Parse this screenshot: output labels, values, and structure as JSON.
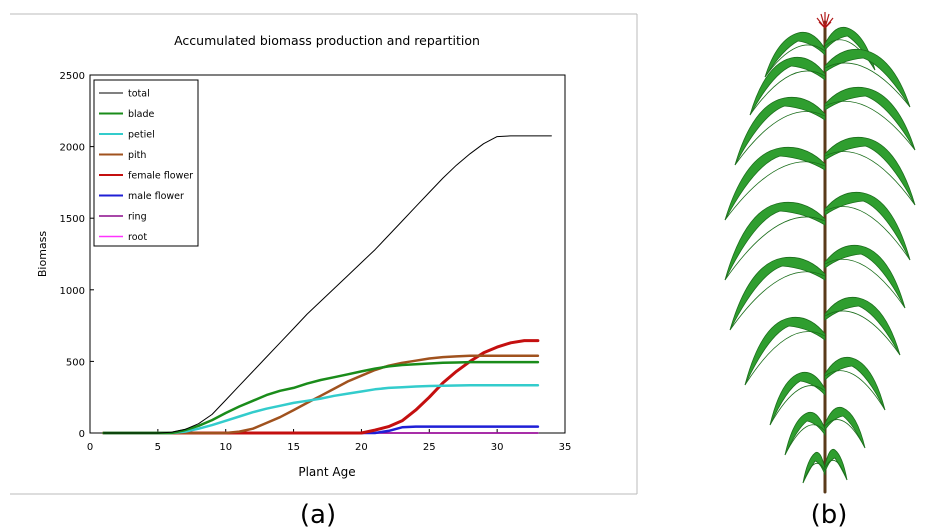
{
  "figure": {
    "panel_a_label": "(a)",
    "panel_b_label": "(b)"
  },
  "colors": {
    "total": "#000000",
    "blade": "#1a8c1a",
    "petiel": "#33cccc",
    "pith": "#a0521e",
    "female_flower": "#c40f0f",
    "male_flower": "#1f1fd6",
    "ring": "#8b0a8b",
    "root": "#ff33ff",
    "leaf_green": "#2f9e2f",
    "leaf_dark": "#1c6e1c",
    "stem": "#5a3a1a",
    "tassel": "#b01818"
  },
  "chart_data": {
    "type": "line",
    "title": "Accumulated biomass production and repartition",
    "xlabel": "Plant Age",
    "ylabel": "Biomass",
    "xlim": [
      0,
      35
    ],
    "ylim": [
      0,
      2500
    ],
    "xticks": [
      0,
      5,
      10,
      15,
      20,
      25,
      30,
      35
    ],
    "yticks": [
      0,
      500,
      1000,
      1500,
      2000,
      2500
    ],
    "legend_position": "top-left",
    "grid": false,
    "series": [
      {
        "name": "total",
        "color_key": "total",
        "width": 1,
        "x": [
          1,
          5,
          6,
          7,
          8,
          9,
          10,
          11,
          12,
          13,
          14,
          15,
          16,
          17,
          18,
          19,
          20,
          21,
          22,
          23,
          24,
          25,
          26,
          27,
          28,
          29,
          30,
          31,
          32,
          33,
          34
        ],
        "y": [
          0,
          0,
          5,
          25,
          65,
          130,
          230,
          330,
          430,
          530,
          630,
          730,
          830,
          920,
          1010,
          1100,
          1190,
          1280,
          1380,
          1480,
          1580,
          1680,
          1780,
          1870,
          1950,
          2020,
          2070,
          2075,
          2075,
          2075,
          2075
        ]
      },
      {
        "name": "blade",
        "color_key": "blade",
        "width": 2.5,
        "x": [
          1,
          6,
          7,
          8,
          9,
          10,
          11,
          12,
          13,
          14,
          15,
          16,
          17,
          18,
          19,
          20,
          21,
          22,
          23,
          24,
          25,
          26,
          27,
          28,
          29,
          30,
          31,
          32,
          33
        ],
        "y": [
          0,
          0,
          20,
          50,
          90,
          140,
          185,
          225,
          265,
          295,
          315,
          345,
          370,
          390,
          410,
          430,
          450,
          465,
          475,
          480,
          485,
          490,
          492,
          495,
          495,
          495,
          495,
          495,
          495
        ]
      },
      {
        "name": "petiel",
        "color_key": "petiel",
        "width": 2.5,
        "x": [
          1,
          6,
          7,
          8,
          9,
          10,
          11,
          12,
          13,
          14,
          15,
          16,
          17,
          18,
          19,
          20,
          21,
          22,
          23,
          24,
          25,
          26,
          27,
          28,
          29,
          30,
          31,
          32,
          33
        ],
        "y": [
          0,
          0,
          10,
          30,
          55,
          85,
          115,
          145,
          170,
          190,
          210,
          225,
          240,
          260,
          275,
          290,
          305,
          315,
          320,
          325,
          328,
          330,
          332,
          333,
          333,
          333,
          333,
          333,
          333
        ]
      },
      {
        "name": "pith",
        "color_key": "pith",
        "width": 2.5,
        "x": [
          1,
          10,
          11,
          12,
          13,
          14,
          15,
          16,
          17,
          18,
          19,
          20,
          21,
          22,
          23,
          24,
          25,
          26,
          27,
          28,
          29,
          30,
          31,
          32,
          33
        ],
        "y": [
          0,
          0,
          10,
          30,
          70,
          110,
          160,
          210,
          260,
          310,
          360,
          400,
          440,
          470,
          490,
          505,
          520,
          530,
          535,
          540,
          540,
          540,
          540,
          540,
          540
        ]
      },
      {
        "name": "female flower",
        "color_key": "female_flower",
        "width": 3,
        "x": [
          1,
          20,
          21,
          22,
          23,
          24,
          25,
          26,
          27,
          28,
          29,
          30,
          31,
          32,
          33
        ],
        "y": [
          0,
          0,
          20,
          45,
          85,
          160,
          250,
          350,
          430,
          500,
          560,
          600,
          630,
          645,
          645
        ]
      },
      {
        "name": "male flower",
        "color_key": "male_flower",
        "width": 2.5,
        "x": [
          1,
          21,
          22,
          23,
          24,
          25,
          26,
          27,
          28,
          29,
          30,
          31,
          32,
          33
        ],
        "y": [
          0,
          0,
          15,
          40,
          45,
          45,
          45,
          45,
          45,
          45,
          45,
          45,
          45,
          45
        ]
      },
      {
        "name": "ring",
        "color_key": "ring",
        "width": 1.5,
        "x": [
          1,
          33
        ],
        "y": [
          0,
          0
        ]
      },
      {
        "name": "root",
        "color_key": "root",
        "width": 1.5,
        "x": [
          1,
          33
        ],
        "y": [
          0,
          0
        ]
      }
    ]
  }
}
